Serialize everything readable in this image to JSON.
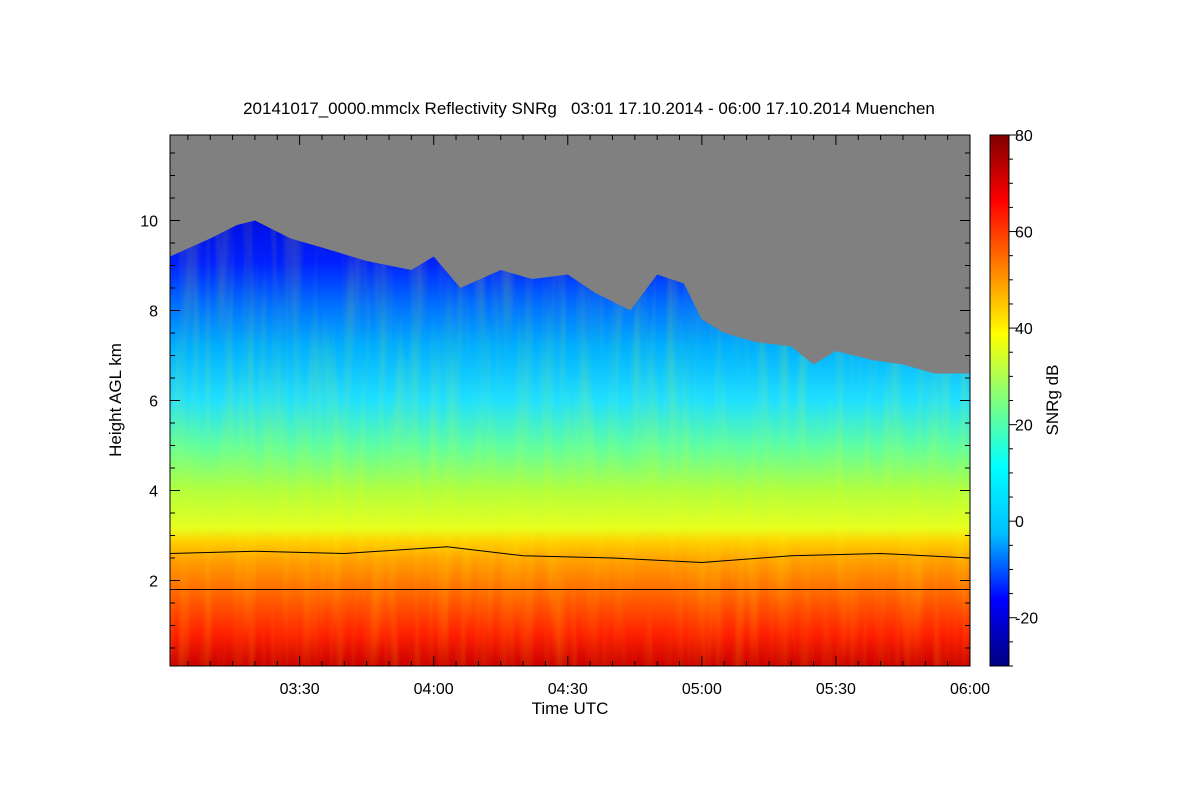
{
  "chart_data": {
    "type": "heatmap",
    "title": "20141017_0000.mmclx Reflectivity SNRg   03:01 17.10.2014 - 06:00 17.10.2014 Muenchen",
    "xlabel": "Time UTC",
    "ylabel": "Height AGL km",
    "colorbar_label": "SNRg dB",
    "x_range_min": [
      181,
      360
    ],
    "y_range_km": [
      0.1,
      11.9
    ],
    "color_range_db": [
      -30,
      80
    ],
    "x_ticks": [
      {
        "min": 210,
        "label": "03:30"
      },
      {
        "min": 240,
        "label": "04:00"
      },
      {
        "min": 270,
        "label": "04:30"
      },
      {
        "min": 300,
        "label": "05:00"
      },
      {
        "min": 330,
        "label": "05:30"
      },
      {
        "min": 360,
        "label": "06:00"
      }
    ],
    "y_ticks": [
      {
        "km": 2,
        "label": "2"
      },
      {
        "km": 4,
        "label": "4"
      },
      {
        "km": 6,
        "label": "6"
      },
      {
        "km": 8,
        "label": "8"
      },
      {
        "km": 10,
        "label": "10"
      }
    ],
    "colorbar_ticks": [
      {
        "db": -20,
        "label": "-20"
      },
      {
        "db": 0,
        "label": "0"
      },
      {
        "db": 20,
        "label": "20"
      },
      {
        "db": 40,
        "label": "40"
      },
      {
        "db": 60,
        "label": "60"
      },
      {
        "db": 80,
        "label": "80"
      }
    ],
    "colormap": [
      "#000080",
      "#0000ff",
      "#00bfff",
      "#00ffff",
      "#7fff7f",
      "#ffff00",
      "#ff8000",
      "#ff0000",
      "#800000"
    ],
    "no_signal_color": "#808080",
    "signal_top_profile": [
      {
        "min": 181,
        "km": 9.2
      },
      {
        "min": 190,
        "km": 9.6
      },
      {
        "min": 196,
        "km": 9.9
      },
      {
        "min": 200,
        "km": 10.0
      },
      {
        "min": 208,
        "km": 9.6
      },
      {
        "min": 215,
        "km": 9.4
      },
      {
        "min": 225,
        "km": 9.1
      },
      {
        "min": 235,
        "km": 8.9
      },
      {
        "min": 240,
        "km": 9.2
      },
      {
        "min": 246,
        "km": 8.5
      },
      {
        "min": 255,
        "km": 8.9
      },
      {
        "min": 262,
        "km": 8.7
      },
      {
        "min": 270,
        "km": 8.8
      },
      {
        "min": 276,
        "km": 8.4
      },
      {
        "min": 284,
        "km": 8.0
      },
      {
        "min": 290,
        "km": 8.8
      },
      {
        "min": 296,
        "km": 8.6
      },
      {
        "min": 300,
        "km": 7.8
      },
      {
        "min": 305,
        "km": 7.5
      },
      {
        "min": 312,
        "km": 7.3
      },
      {
        "min": 320,
        "km": 7.2
      },
      {
        "min": 325,
        "km": 6.8
      },
      {
        "min": 330,
        "km": 7.1
      },
      {
        "min": 338,
        "km": 6.9
      },
      {
        "min": 345,
        "km": 6.8
      },
      {
        "min": 352,
        "km": 6.6
      },
      {
        "min": 360,
        "km": 6.6
      }
    ],
    "melting_layer_line": [
      {
        "min": 181,
        "km": 2.6
      },
      {
        "min": 200,
        "km": 2.65
      },
      {
        "min": 220,
        "km": 2.6
      },
      {
        "min": 243,
        "km": 2.75
      },
      {
        "min": 260,
        "km": 2.55
      },
      {
        "min": 280,
        "km": 2.5
      },
      {
        "min": 300,
        "km": 2.4
      },
      {
        "min": 320,
        "km": 2.55
      },
      {
        "min": 340,
        "km": 2.6
      },
      {
        "min": 360,
        "km": 2.5
      }
    ],
    "reference_line_km": 1.8
  }
}
